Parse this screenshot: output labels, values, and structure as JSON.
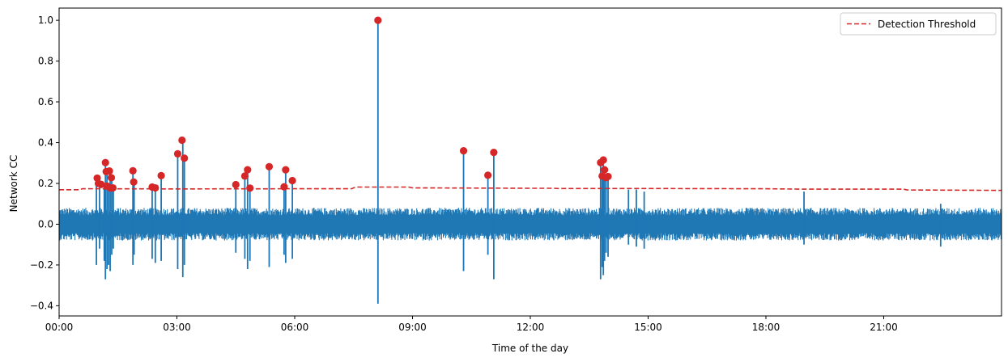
{
  "chart_data": {
    "type": "line",
    "title": "",
    "xlabel": "Time of the day",
    "ylabel": "Network CC",
    "xlim_hours": [
      0,
      24
    ],
    "ylim": [
      -0.45,
      1.06
    ],
    "x_ticks": [
      {
        "hour": 0,
        "label": "00:00"
      },
      {
        "hour": 3,
        "label": "03:00"
      },
      {
        "hour": 6,
        "label": "06:00"
      },
      {
        "hour": 9,
        "label": "09:00"
      },
      {
        "hour": 12,
        "label": "12:00"
      },
      {
        "hour": 15,
        "label": "15:00"
      },
      {
        "hour": 18,
        "label": "18:00"
      },
      {
        "hour": 21,
        "label": "21:00"
      }
    ],
    "y_ticks": [
      {
        "value": -0.4,
        "label": "−0.4"
      },
      {
        "value": -0.2,
        "label": "−0.2"
      },
      {
        "value": 0.0,
        "label": "0.0"
      },
      {
        "value": 0.2,
        "label": "0.2"
      },
      {
        "value": 0.4,
        "label": "0.4"
      },
      {
        "value": 0.6,
        "label": "0.6"
      },
      {
        "value": 0.8,
        "label": "0.8"
      },
      {
        "value": 1.0,
        "label": "1.0"
      }
    ],
    "legend": {
      "location": "top-right",
      "entries": [
        "Detection Threshold"
      ]
    },
    "colors": {
      "signal": "#1f77b4",
      "threshold": "#d62728",
      "detection": "#d62728"
    },
    "cc_series": {
      "name": "Network CC",
      "noise_band": [
        -0.08,
        0.08
      ],
      "spikes": [
        {
          "t": 0.95,
          "hi": 0.23,
          "lo": -0.2
        },
        {
          "t": 1.03,
          "hi": 0.2,
          "lo": -0.12
        },
        {
          "t": 1.15,
          "hi": 0.19,
          "lo": -0.18
        },
        {
          "t": 1.18,
          "hi": 0.3,
          "lo": -0.27
        },
        {
          "t": 1.22,
          "hi": 0.26,
          "lo": -0.22
        },
        {
          "t": 1.26,
          "hi": 0.18,
          "lo": -0.2
        },
        {
          "t": 1.3,
          "hi": 0.26,
          "lo": -0.23
        },
        {
          "t": 1.34,
          "hi": 0.23,
          "lo": -0.15
        },
        {
          "t": 1.38,
          "hi": 0.18,
          "lo": -0.12
        },
        {
          "t": 1.88,
          "hi": 0.26,
          "lo": -0.2
        },
        {
          "t": 1.91,
          "hi": 0.21,
          "lo": -0.15
        },
        {
          "t": 2.37,
          "hi": 0.18,
          "lo": -0.17
        },
        {
          "t": 2.45,
          "hi": 0.18,
          "lo": -0.19
        },
        {
          "t": 2.6,
          "hi": 0.24,
          "lo": -0.18
        },
        {
          "t": 3.02,
          "hi": 0.34,
          "lo": -0.22
        },
        {
          "t": 3.15,
          "hi": 0.41,
          "lo": -0.26
        },
        {
          "t": 3.19,
          "hi": 0.32,
          "lo": -0.2
        },
        {
          "t": 4.5,
          "hi": 0.19,
          "lo": -0.14
        },
        {
          "t": 4.73,
          "hi": 0.23,
          "lo": -0.17
        },
        {
          "t": 4.8,
          "hi": 0.27,
          "lo": -0.22
        },
        {
          "t": 4.86,
          "hi": 0.17,
          "lo": -0.18
        },
        {
          "t": 5.35,
          "hi": 0.28,
          "lo": -0.21
        },
        {
          "t": 5.73,
          "hi": 0.18,
          "lo": -0.15
        },
        {
          "t": 5.77,
          "hi": 0.27,
          "lo": -0.19
        },
        {
          "t": 5.94,
          "hi": 0.21,
          "lo": -0.17
        },
        {
          "t": 8.12,
          "hi": 1.0,
          "lo": -0.39
        },
        {
          "t": 10.3,
          "hi": 0.36,
          "lo": -0.23
        },
        {
          "t": 10.92,
          "hi": 0.24,
          "lo": -0.15
        },
        {
          "t": 11.07,
          "hi": 0.35,
          "lo": -0.27
        },
        {
          "t": 13.79,
          "hi": 0.3,
          "lo": -0.27
        },
        {
          "t": 13.83,
          "hi": 0.23,
          "lo": -0.21
        },
        {
          "t": 13.86,
          "hi": 0.31,
          "lo": -0.25
        },
        {
          "t": 13.89,
          "hi": 0.26,
          "lo": -0.18
        },
        {
          "t": 13.93,
          "hi": 0.22,
          "lo": -0.14
        },
        {
          "t": 13.98,
          "hi": 0.23,
          "lo": -0.16
        },
        {
          "t": 14.5,
          "hi": 0.17,
          "lo": -0.1
        },
        {
          "t": 14.7,
          "hi": 0.17,
          "lo": -0.11
        },
        {
          "t": 14.9,
          "hi": 0.16,
          "lo": -0.12
        },
        {
          "t": 18.97,
          "hi": 0.16,
          "lo": -0.1
        },
        {
          "t": 22.45,
          "hi": 0.1,
          "lo": -0.11
        }
      ]
    },
    "threshold_series": {
      "name": "Detection Threshold",
      "style": "dashed",
      "t": [
        0,
        0.5,
        0.6,
        3.0,
        6.0,
        7.45,
        7.55,
        8.9,
        9.0,
        12.0,
        12.6,
        12.7,
        15.0,
        18.0,
        19.0,
        21.5,
        21.6,
        24.0
      ],
      "values": [
        0.169,
        0.169,
        0.174,
        0.173,
        0.174,
        0.174,
        0.182,
        0.182,
        0.178,
        0.176,
        0.176,
        0.175,
        0.175,
        0.174,
        0.172,
        0.172,
        0.168,
        0.166
      ]
    },
    "detections": [
      {
        "t": 0.97,
        "cc": 0.226
      },
      {
        "t": 1.0,
        "cc": 0.2
      },
      {
        "t": 1.07,
        "cc": 0.195
      },
      {
        "t": 1.18,
        "cc": 0.302
      },
      {
        "t": 1.2,
        "cc": 0.258
      },
      {
        "t": 1.22,
        "cc": 0.187
      },
      {
        "t": 1.28,
        "cc": 0.261
      },
      {
        "t": 1.3,
        "cc": 0.178
      },
      {
        "t": 1.33,
        "cc": 0.228
      },
      {
        "t": 1.37,
        "cc": 0.178
      },
      {
        "t": 1.88,
        "cc": 0.262
      },
      {
        "t": 1.9,
        "cc": 0.207
      },
      {
        "t": 2.37,
        "cc": 0.182
      },
      {
        "t": 2.45,
        "cc": 0.178
      },
      {
        "t": 2.6,
        "cc": 0.238
      },
      {
        "t": 3.02,
        "cc": 0.345
      },
      {
        "t": 3.13,
        "cc": 0.412
      },
      {
        "t": 3.19,
        "cc": 0.324
      },
      {
        "t": 4.5,
        "cc": 0.194
      },
      {
        "t": 4.73,
        "cc": 0.236
      },
      {
        "t": 4.8,
        "cc": 0.267
      },
      {
        "t": 4.86,
        "cc": 0.177
      },
      {
        "t": 5.35,
        "cc": 0.282
      },
      {
        "t": 5.73,
        "cc": 0.183
      },
      {
        "t": 5.77,
        "cc": 0.267
      },
      {
        "t": 5.94,
        "cc": 0.214
      },
      {
        "t": 8.12,
        "cc": 1.0
      },
      {
        "t": 10.3,
        "cc": 0.36
      },
      {
        "t": 10.92,
        "cc": 0.24
      },
      {
        "t": 11.07,
        "cc": 0.352
      },
      {
        "t": 13.79,
        "cc": 0.302
      },
      {
        "t": 13.83,
        "cc": 0.236
      },
      {
        "t": 13.86,
        "cc": 0.315
      },
      {
        "t": 13.89,
        "cc": 0.267
      },
      {
        "t": 13.93,
        "cc": 0.228
      },
      {
        "t": 13.98,
        "cc": 0.234
      }
    ]
  }
}
